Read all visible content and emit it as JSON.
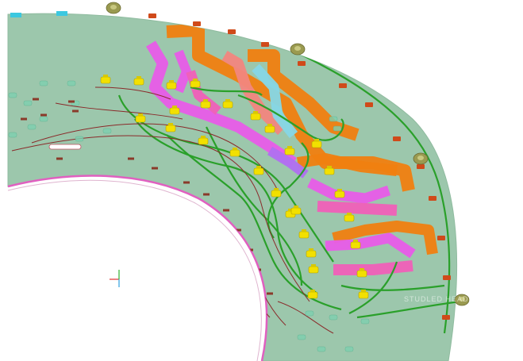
{
  "viewport": {
    "background": "#ffffff",
    "plate_color": "#9cc7ac",
    "plate_edge_color": "#8fbb9f",
    "inner_rim_color": "#e060c0",
    "watermark_text": "STUDLED HEADERS"
  },
  "palette": {
    "ribbon_orange": "#f07f10",
    "ribbon_salmon": "#f2867e",
    "ribbon_magenta": "#e85ce8",
    "ribbon_pink": "#f060b8",
    "ribbon_cyan": "#86d7e6",
    "ribbon_violet": "#b070f0",
    "wire_green": "#2aa02a",
    "wire_maroon": "#8a2a2a",
    "connector_yellow": "#f2e000",
    "clip_red": "#d04a1a",
    "stud_olive": "#9a9a50",
    "clip_cyan": "#3cc8e0",
    "fastener_teal": "#7fd0b0"
  },
  "icons": {
    "axis_triad": "axis-triad-icon",
    "stud": "stud-icon",
    "connector": "connector-icon"
  }
}
